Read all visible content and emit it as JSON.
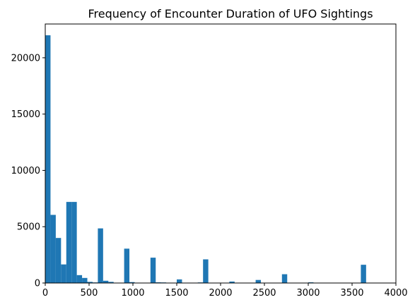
{
  "chart_data": {
    "type": "bar",
    "title": "Frequency of Encounter Duration of UFO Sightings",
    "xlabel": "",
    "ylabel": "",
    "xlim": [
      0,
      4000
    ],
    "ylim": [
      0,
      23000
    ],
    "grid": false,
    "bar_color": "#1f77b4",
    "bin_width": 60,
    "bins": [
      {
        "x0": 0,
        "x1": 60,
        "count": 22000
      },
      {
        "x0": 60,
        "x1": 120,
        "count": 6050
      },
      {
        "x0": 120,
        "x1": 180,
        "count": 4000
      },
      {
        "x0": 180,
        "x1": 240,
        "count": 1650
      },
      {
        "x0": 240,
        "x1": 300,
        "count": 7200
      },
      {
        "x0": 300,
        "x1": 360,
        "count": 7200
      },
      {
        "x0": 360,
        "x1": 420,
        "count": 700
      },
      {
        "x0": 420,
        "x1": 480,
        "count": 450
      },
      {
        "x0": 480,
        "x1": 540,
        "count": 100
      },
      {
        "x0": 540,
        "x1": 600,
        "count": 50
      },
      {
        "x0": 600,
        "x1": 660,
        "count": 4850
      },
      {
        "x0": 660,
        "x1": 720,
        "count": 200
      },
      {
        "x0": 720,
        "x1": 780,
        "count": 100
      },
      {
        "x0": 780,
        "x1": 840,
        "count": 30
      },
      {
        "x0": 840,
        "x1": 900,
        "count": 20
      },
      {
        "x0": 900,
        "x1": 960,
        "count": 3050
      },
      {
        "x0": 960,
        "x1": 1020,
        "count": 80
      },
      {
        "x0": 1020,
        "x1": 1080,
        "count": 20
      },
      {
        "x0": 1140,
        "x1": 1200,
        "count": 30
      },
      {
        "x0": 1200,
        "x1": 1260,
        "count": 2250
      },
      {
        "x0": 1260,
        "x1": 1320,
        "count": 60
      },
      {
        "x0": 1320,
        "x1": 1380,
        "count": 50
      },
      {
        "x0": 1440,
        "x1": 1500,
        "count": 30
      },
      {
        "x0": 1500,
        "x1": 1560,
        "count": 320
      },
      {
        "x0": 1740,
        "x1": 1800,
        "count": 50
      },
      {
        "x0": 1800,
        "x1": 1860,
        "count": 2100
      },
      {
        "x0": 2040,
        "x1": 2100,
        "count": 30
      },
      {
        "x0": 2100,
        "x1": 2160,
        "count": 130
      },
      {
        "x0": 2340,
        "x1": 2400,
        "count": 30
      },
      {
        "x0": 2400,
        "x1": 2460,
        "count": 270
      },
      {
        "x0": 2640,
        "x1": 2700,
        "count": 30
      },
      {
        "x0": 2700,
        "x1": 2760,
        "count": 780
      },
      {
        "x0": 2940,
        "x1": 3000,
        "count": 20
      },
      {
        "x0": 3000,
        "x1": 3060,
        "count": 60
      },
      {
        "x0": 3540,
        "x1": 3600,
        "count": 30
      },
      {
        "x0": 3600,
        "x1": 3660,
        "count": 1620
      }
    ],
    "x_ticks": [
      0,
      500,
      1000,
      1500,
      2000,
      2500,
      3000,
      3500,
      4000
    ],
    "x_tick_labels": [
      "0",
      "500",
      "1000",
      "1500",
      "2000",
      "2500",
      "3000",
      "3500",
      "4000"
    ],
    "y_ticks": [
      0,
      5000,
      10000,
      15000,
      20000
    ],
    "y_tick_labels": [
      "0",
      "5000",
      "10000",
      "15000",
      "20000"
    ]
  }
}
